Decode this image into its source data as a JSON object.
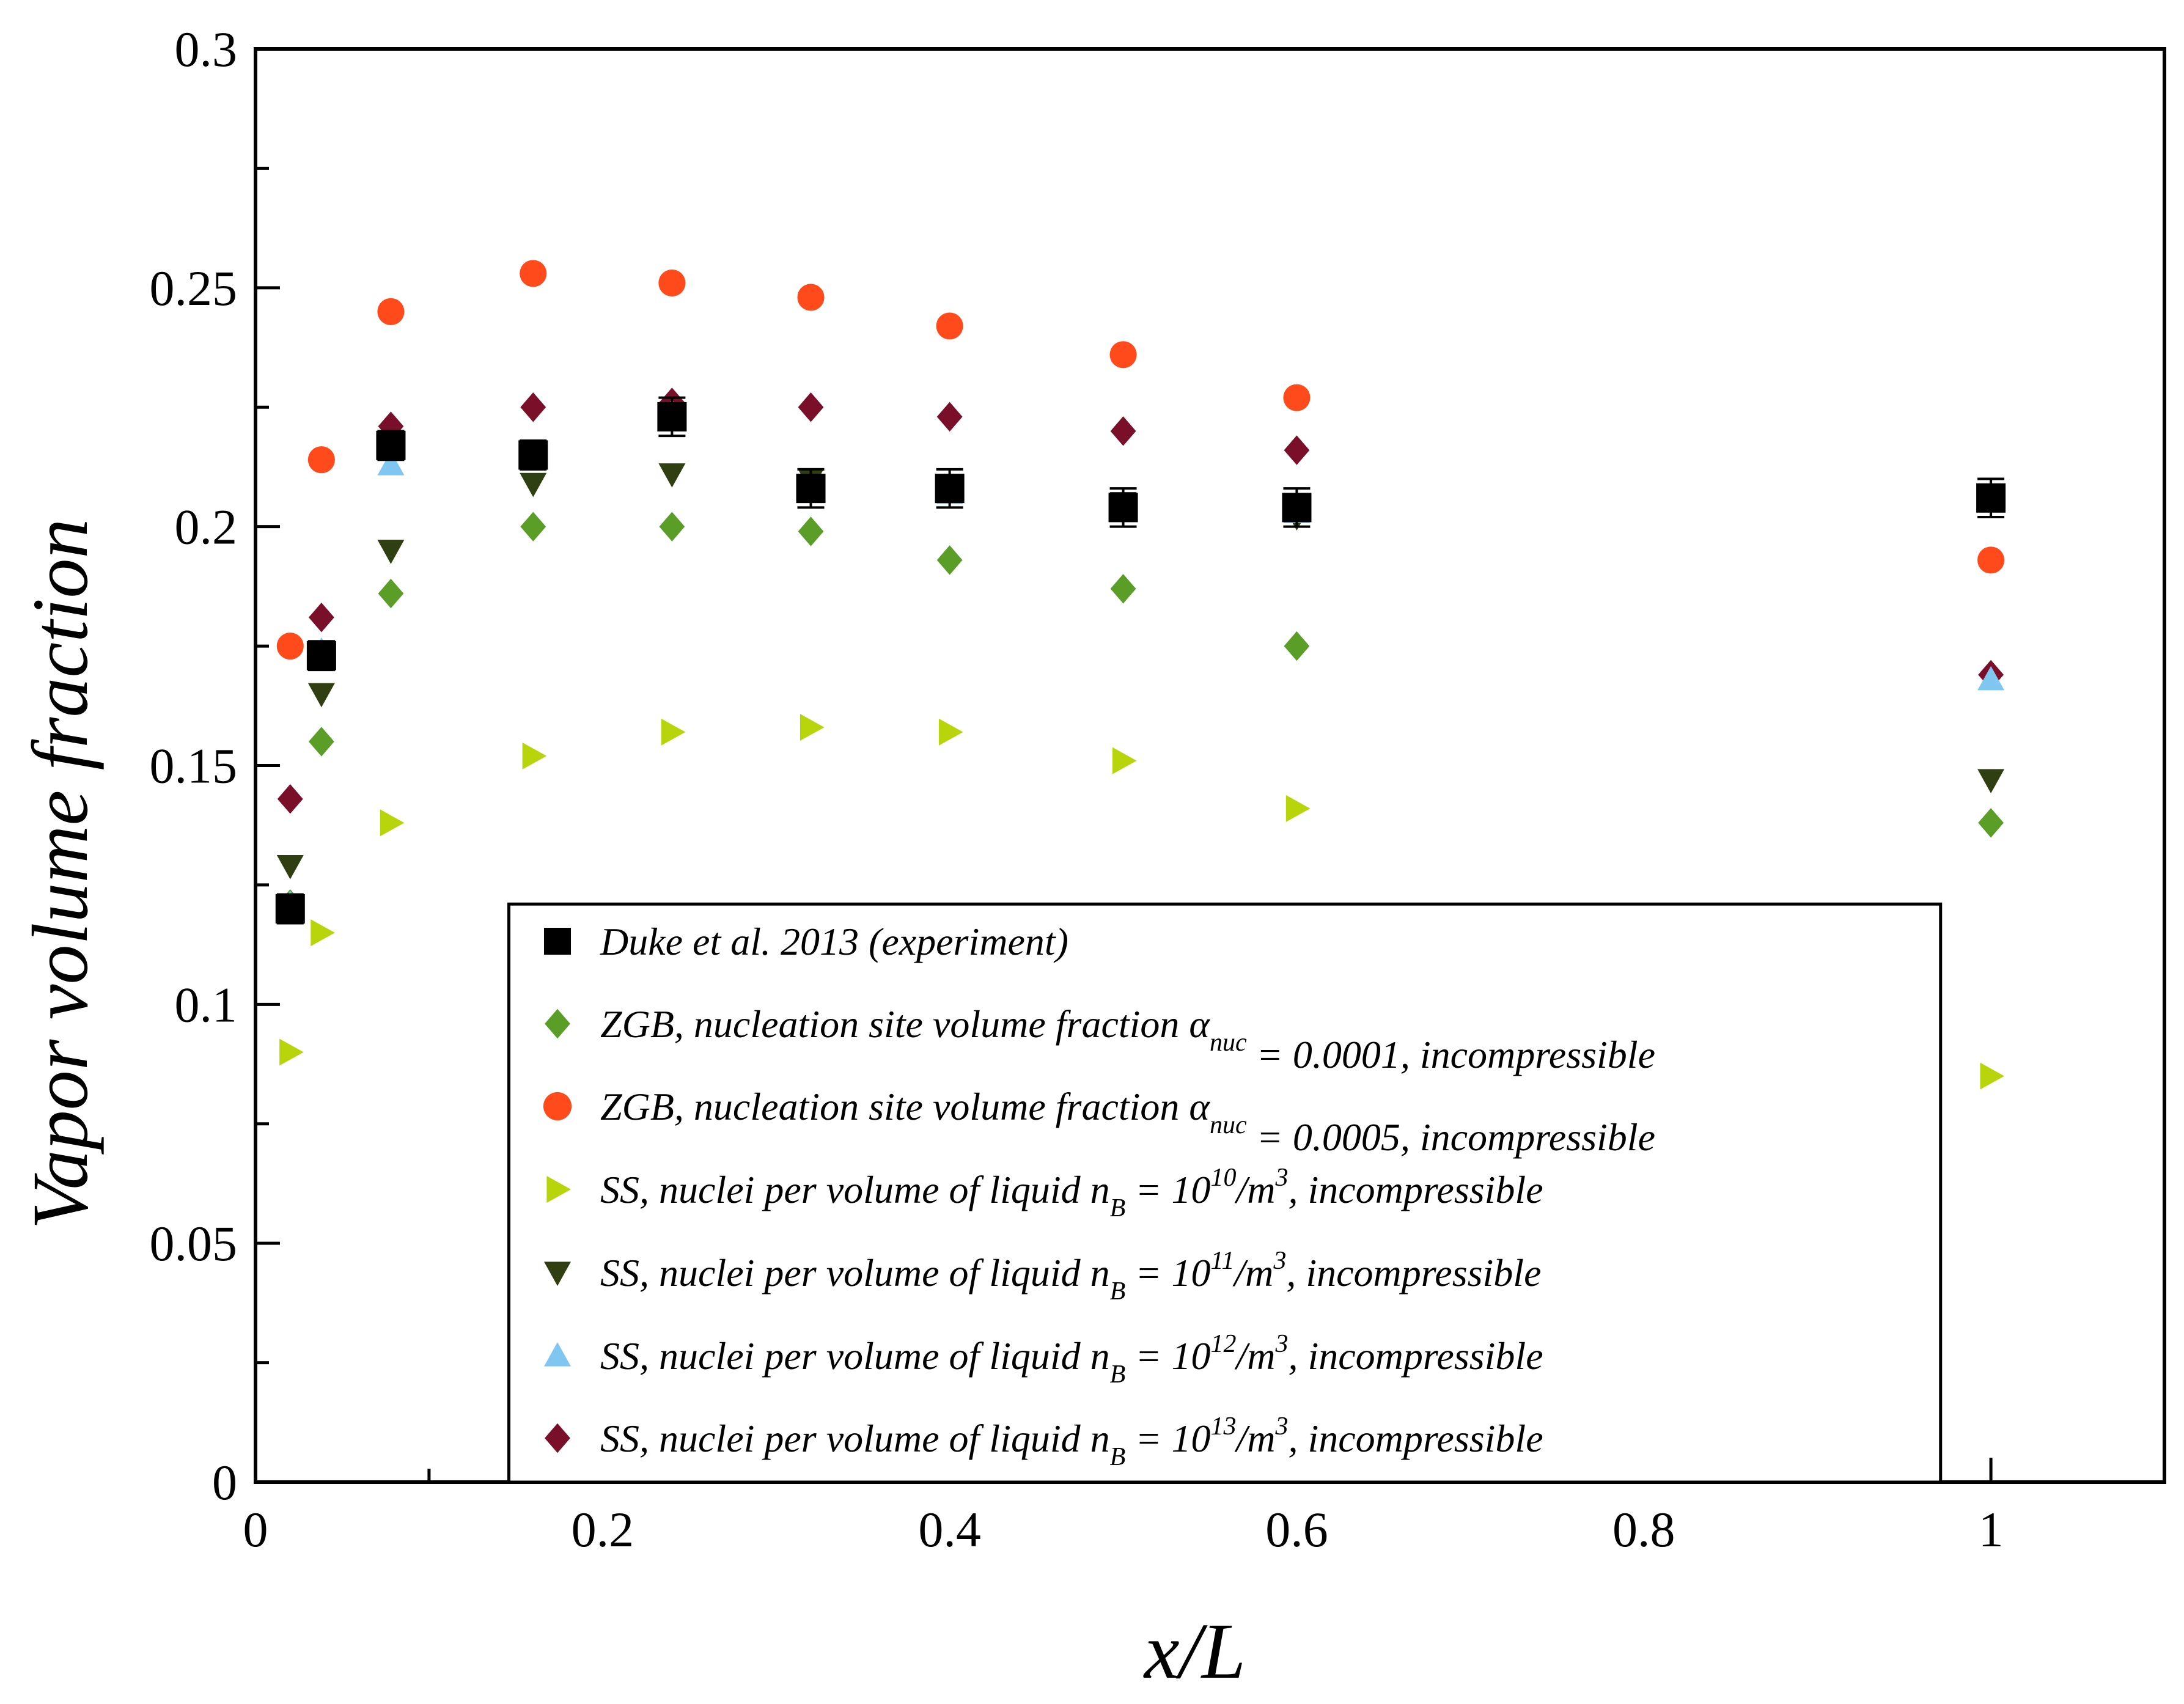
{
  "chart_data": {
    "type": "scatter",
    "title": "",
    "xlabel": "x/L",
    "ylabel": "Vapor volume fraction",
    "xlim": [
      0,
      1.1
    ],
    "ylim": [
      0,
      0.3
    ],
    "xticks": [
      0,
      0.2,
      0.4,
      0.6,
      0.8,
      1
    ],
    "xtick_labels": [
      "0",
      "0.2",
      "0.4",
      "0.6",
      "0.8",
      "1"
    ],
    "yticks": [
      0,
      0.05,
      0.1,
      0.15,
      0.2,
      0.25,
      0.3
    ],
    "ytick_labels": [
      "0",
      "0.05",
      "0.1",
      "0.15",
      "0.2",
      "0.25",
      "0.3"
    ],
    "grid": false,
    "legend_position": "bottom-center",
    "series": [
      {
        "legend": {
          "pre": "Duke et al. 2013 (experiment)"
        },
        "marker": "square",
        "color": "#000000",
        "x": [
          0.02,
          0.038,
          0.078,
          0.16,
          0.24,
          0.32,
          0.4,
          0.5,
          0.6,
          1.0
        ],
        "y": [
          0.12,
          0.173,
          0.217,
          0.215,
          0.223,
          0.208,
          0.208,
          0.204,
          0.204,
          0.206
        ],
        "yerr": [
          0.003,
          0.003,
          0.003,
          0.003,
          0.004,
          0.004,
          0.004,
          0.004,
          0.004,
          0.004
        ]
      },
      {
        "legend": {
          "pre": "ZGB, nucleation site volume fraction α",
          "sub": "nuc",
          "post": " =  0.0001, incompressible"
        },
        "marker": "diamond",
        "color": "#5a9e28",
        "x": [
          0.02,
          0.038,
          0.078,
          0.16,
          0.24,
          0.32,
          0.4,
          0.5,
          0.6,
          1.0
        ],
        "y": [
          0.121,
          0.155,
          0.186,
          0.2,
          0.2,
          0.199,
          0.193,
          0.187,
          0.175,
          0.138
        ]
      },
      {
        "legend": {
          "pre": "ZGB, nucleation site volume fraction α",
          "sub": "nuc",
          "post": " =  0.0005, incompressible"
        },
        "marker": "circle",
        "color": "#ff4a1c",
        "x": [
          0.02,
          0.038,
          0.078,
          0.16,
          0.24,
          0.32,
          0.4,
          0.5,
          0.6,
          1.0
        ],
        "y": [
          0.175,
          0.214,
          0.245,
          0.253,
          0.251,
          0.248,
          0.242,
          0.236,
          0.227,
          0.193
        ]
      },
      {
        "legend": {
          "pre": "SS, nuclei per volume of liquid n",
          "sub": "B",
          "mid": " = 10",
          "sup": "10",
          "post": "/m",
          "sup2": "3",
          "post2": ", incompressible"
        },
        "marker": "triangle-right",
        "color": "#b8d40a",
        "x": [
          0.02,
          0.038,
          0.078,
          0.16,
          0.24,
          0.32,
          0.4,
          0.5,
          0.6,
          1.0
        ],
        "y": [
          0.09,
          0.115,
          0.138,
          0.152,
          0.157,
          0.158,
          0.157,
          0.151,
          0.141,
          0.085
        ]
      },
      {
        "legend": {
          "pre": "SS, nuclei per volume of liquid n",
          "sub": "B",
          "mid": " = 10",
          "sup": "11",
          "post": "/m",
          "sup2": "3",
          "post2": ", incompressible"
        },
        "marker": "triangle-down",
        "color": "#2f3f12",
        "x": [
          0.02,
          0.038,
          0.078,
          0.16,
          0.24,
          0.32,
          0.4,
          0.5,
          0.6,
          1.0
        ],
        "y": [
          0.129,
          0.165,
          0.195,
          0.209,
          0.211,
          0.21,
          0.208,
          0.205,
          0.202,
          0.147
        ]
      },
      {
        "legend": {
          "pre": "SS, nuclei per volume of liquid n",
          "sub": "B",
          "mid": " = 10",
          "sup": "12",
          "post": "/m",
          "sup2": "3",
          "post2": ", incompressible"
        },
        "marker": "triangle-up",
        "color": "#7fc6f0",
        "x": [
          0.02,
          0.038,
          0.078,
          0.16,
          0.24,
          0.32,
          0.4,
          0.5,
          0.6,
          1.0
        ],
        "y": [
          0.121,
          0.174,
          0.213,
          0.214,
          0.224,
          0.208,
          0.207,
          0.204,
          0.203,
          0.168
        ]
      },
      {
        "legend": {
          "pre": "SS, nuclei per volume of liquid n",
          "sub": "B",
          "mid": " =  10",
          "sup": "13",
          "post": "/m",
          "sup2": "3",
          "post2": ", incompressible"
        },
        "marker": "diamond",
        "color": "#7a0f2a",
        "x": [
          0.02,
          0.038,
          0.078,
          0.16,
          0.24,
          0.32,
          0.4,
          0.5,
          0.6,
          1.0
        ],
        "y": [
          0.143,
          0.181,
          0.221,
          0.225,
          0.226,
          0.225,
          0.223,
          0.22,
          0.216,
          0.169
        ]
      }
    ]
  }
}
